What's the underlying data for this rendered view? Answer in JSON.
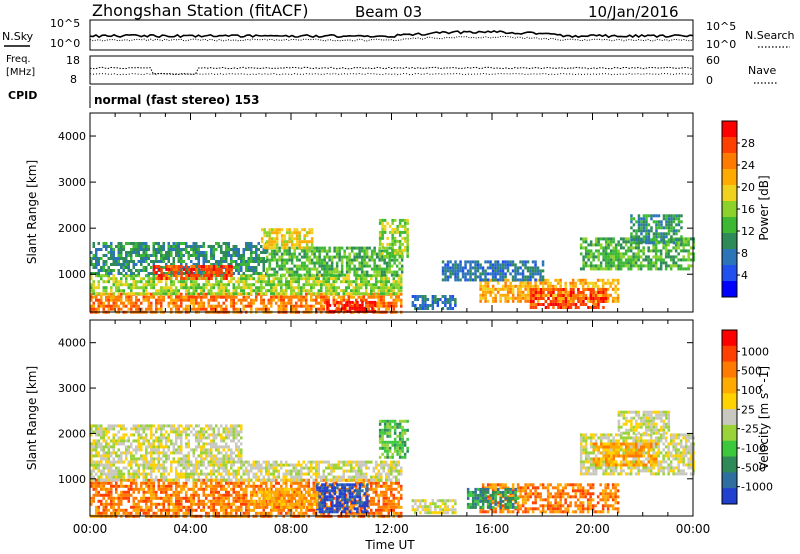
{
  "header": {
    "station": "Zhongshan Station (fitACF)",
    "beam": "Beam 03",
    "date": "10/Jan/2016"
  },
  "strips": {
    "nsky_label": "N.Sky",
    "nsearch_label": "N.Search",
    "nsky_ticks": [
      "10^5",
      "10^0"
    ],
    "nsky_right_ticks": [
      "10^5",
      "10^0"
    ],
    "freq_label_1": "Freq.",
    "freq_label_2": "[MHz]",
    "freq_ticks": [
      "18",
      "8"
    ],
    "nave_label": "Nave",
    "nave_ticks": [
      "60",
      "0"
    ],
    "cpid_label": "CPID",
    "cpid_text": "normal (fast stereo) 153"
  },
  "chart_data": [
    {
      "type": "heatmap",
      "panel": "power",
      "ylabel": "Slant Range [km]",
      "xlabel": "",
      "xlim": [
        0,
        24
      ],
      "ylim": [
        180,
        4500
      ],
      "yticks": [
        "1000",
        "2000",
        "3000",
        "4000"
      ],
      "colorbar": {
        "label": "Power [dB]",
        "ticks": [
          "4",
          "8",
          "12",
          "16",
          "20",
          "24",
          "28"
        ],
        "colors": [
          "#0000ff",
          "#2050ee",
          "#2c74b8",
          "#2e8b57",
          "#3cb832",
          "#8bd22a",
          "#f0d21e",
          "#ffaa00",
          "#ff7a00",
          "#ff4000",
          "#ff0000"
        ]
      },
      "regions": [
        {
          "t0": 0.0,
          "t1": 12.4,
          "r0": 180,
          "r1": 600,
          "c": 8
        },
        {
          "t0": 0.0,
          "t1": 12.4,
          "r0": 600,
          "r1": 1000,
          "c": 5
        },
        {
          "t0": 0.0,
          "t1": 7.0,
          "r0": 1000,
          "r1": 1700,
          "c": 3
        },
        {
          "t0": 2.5,
          "t1": 5.6,
          "r0": 900,
          "r1": 1200,
          "c": 9
        },
        {
          "t0": 7.0,
          "t1": 12.4,
          "r0": 1000,
          "r1": 1600,
          "c": 4
        },
        {
          "t0": 9.3,
          "t1": 11.3,
          "r0": 200,
          "r1": 420,
          "c": 10
        },
        {
          "t0": 6.8,
          "t1": 8.8,
          "r0": 1600,
          "r1": 2000,
          "c": 6
        },
        {
          "t0": 11.5,
          "t1": 12.6,
          "r0": 1400,
          "r1": 2200,
          "c": 5
        },
        {
          "t0": 15.5,
          "t1": 21.0,
          "r0": 400,
          "r1": 900,
          "c": 7
        },
        {
          "t0": 17.5,
          "t1": 20.5,
          "r0": 300,
          "r1": 700,
          "c": 9
        },
        {
          "t0": 14.0,
          "t1": 18.0,
          "r0": 900,
          "r1": 1300,
          "c": 2
        },
        {
          "t0": 19.5,
          "t1": 24.0,
          "r0": 1100,
          "r1": 1800,
          "c": 4
        },
        {
          "t0": 21.5,
          "t1": 23.5,
          "r0": 1700,
          "r1": 2300,
          "c": 3
        },
        {
          "t0": 12.8,
          "t1": 14.5,
          "r0": 250,
          "r1": 550,
          "c": 2
        }
      ]
    },
    {
      "type": "heatmap",
      "panel": "velocity",
      "ylabel": "Slant Range [km]",
      "xlabel": "Time UT",
      "xlim": [
        0,
        24
      ],
      "ylim": [
        180,
        4500
      ],
      "xticks": [
        "00:00",
        "04:00",
        "08:00",
        "12:00",
        "16:00",
        "20:00",
        "00:00"
      ],
      "yticks": [
        "1000",
        "2000",
        "3000",
        "4000"
      ],
      "colorbar": {
        "label": "Velocity [m s^-1]",
        "ticks": [
          "1000",
          "500",
          "100",
          "25",
          "-25",
          "-100",
          "-500",
          "-1000"
        ],
        "colors": [
          "#2040d0",
          "#2e6ea0",
          "#2e8b57",
          "#3cc83c",
          "#9ad23a",
          "#c8c8c0",
          "#ffd200",
          "#ffaa00",
          "#ff7a00",
          "#ff4000",
          "#ff0000"
        ]
      },
      "regions": [
        {
          "t0": 0.0,
          "t1": 12.4,
          "r0": 180,
          "r1": 1000,
          "c": 8
        },
        {
          "t0": 0.0,
          "t1": 12.4,
          "r0": 1000,
          "r1": 1400,
          "c": 5
        },
        {
          "t0": 0.0,
          "t1": 6.0,
          "r0": 1400,
          "r1": 2200,
          "c": 5
        },
        {
          "t0": 9.0,
          "t1": 11.0,
          "r0": 300,
          "r1": 900,
          "c": 0
        },
        {
          "t0": 6.5,
          "t1": 9.0,
          "r0": 400,
          "r1": 800,
          "c": 7
        },
        {
          "t0": 11.5,
          "t1": 12.6,
          "r0": 1500,
          "r1": 2300,
          "c": 3
        },
        {
          "t0": 15.5,
          "t1": 21.0,
          "r0": 300,
          "r1": 900,
          "c": 8
        },
        {
          "t0": 15.0,
          "t1": 17.0,
          "r0": 400,
          "r1": 800,
          "c": 2
        },
        {
          "t0": 19.5,
          "t1": 24.0,
          "r0": 1100,
          "r1": 2000,
          "c": 5
        },
        {
          "t0": 20.0,
          "t1": 22.5,
          "r0": 1300,
          "r1": 1800,
          "c": 7
        },
        {
          "t0": 21.0,
          "t1": 23.0,
          "r0": 2000,
          "r1": 2500,
          "c": 5
        },
        {
          "t0": 12.8,
          "t1": 14.5,
          "r0": 250,
          "r1": 550,
          "c": 5
        }
      ]
    }
  ]
}
